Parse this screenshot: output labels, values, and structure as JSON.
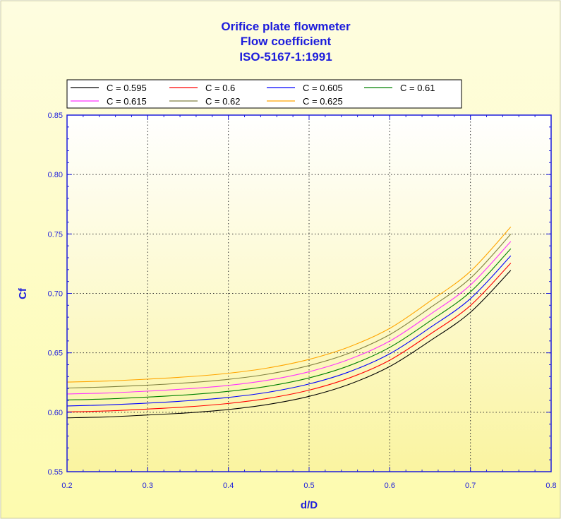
{
  "chart_data": {
    "type": "line",
    "title_lines": [
      "Orifice plate flowmeter",
      "Flow coefficient",
      "ISO-5167-1:1991"
    ],
    "xlabel": "d/D",
    "ylabel": "Cf",
    "xlim": [
      0.2,
      0.8
    ],
    "ylim": [
      0.55,
      0.85
    ],
    "x_ticks": [
      "0.2",
      "0.3",
      "0.4",
      "0.5",
      "0.6",
      "0.7",
      "0.8"
    ],
    "y_ticks": [
      "0.55",
      "0.60",
      "0.65",
      "0.70",
      "0.75",
      "0.80",
      "0.85"
    ],
    "grid": true,
    "legend_position": "top",
    "x": [
      0.2,
      0.25,
      0.3,
      0.35,
      0.4,
      0.45,
      0.5,
      0.55,
      0.6,
      0.65,
      0.7,
      0.75
    ],
    "series": [
      {
        "name": "C = 0.595",
        "color": "#000000",
        "values": [
          0.5953,
          0.5961,
          0.5977,
          0.5995,
          0.6023,
          0.6067,
          0.6134,
          0.6236,
          0.6385,
          0.6601,
          0.6841,
          0.7194
        ]
      },
      {
        "name": "C = 0.6",
        "color": "#ff0000",
        "values": [
          0.6003,
          0.6011,
          0.6027,
          0.6046,
          0.6074,
          0.6118,
          0.6186,
          0.6289,
          0.6438,
          0.6657,
          0.6898,
          0.7255
        ]
      },
      {
        "name": "C = 0.605",
        "color": "#0000ff",
        "values": [
          0.6053,
          0.6062,
          0.6077,
          0.6097,
          0.6125,
          0.6169,
          0.6238,
          0.6341,
          0.6492,
          0.6712,
          0.6956,
          0.7316
        ]
      },
      {
        "name": "C = 0.61",
        "color": "#008000",
        "values": [
          0.6104,
          0.6112,
          0.6128,
          0.6147,
          0.6176,
          0.622,
          0.6289,
          0.6393,
          0.6546,
          0.6768,
          0.7013,
          0.7376
        ]
      },
      {
        "name": "C = 0.615",
        "color": "#ff33ff",
        "values": [
          0.6154,
          0.6162,
          0.6178,
          0.6198,
          0.6226,
          0.6271,
          0.6341,
          0.6446,
          0.6599,
          0.6823,
          0.7071,
          0.7437
        ]
      },
      {
        "name": "C = 0.62",
        "color": "#808040",
        "values": [
          0.6204,
          0.6213,
          0.6228,
          0.6248,
          0.6277,
          0.6322,
          0.6393,
          0.6498,
          0.6653,
          0.6879,
          0.7128,
          0.7498
        ]
      },
      {
        "name": "C = 0.625",
        "color": "#ffa500",
        "values": [
          0.6254,
          0.6263,
          0.6279,
          0.6299,
          0.6328,
          0.6374,
          0.6445,
          0.6551,
          0.6706,
          0.6935,
          0.7186,
          0.7559
        ]
      }
    ]
  },
  "colors": {
    "title": "#1c1cdc",
    "axis": "#1c1cdc",
    "outer_background": "#fdfcb3",
    "plot_background_top": "#ffffff",
    "plot_background_bottom": "#faf5a6"
  }
}
